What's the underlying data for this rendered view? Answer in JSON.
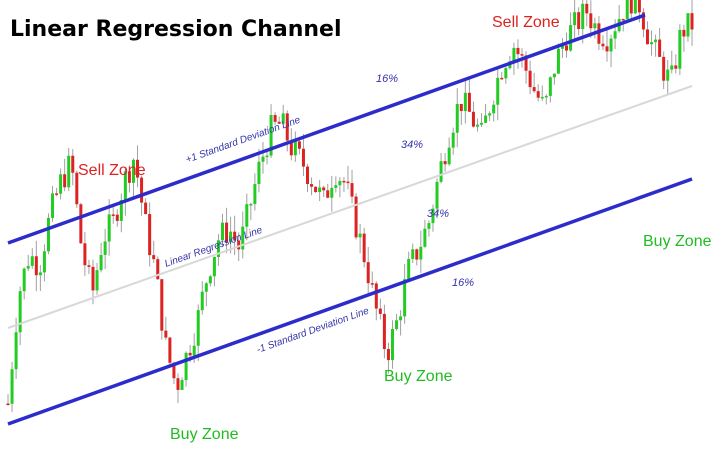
{
  "chart_data": {
    "type": "line",
    "title": "Linear Regression Channel",
    "subtype": "candlestick",
    "colors": {
      "channel": "#2c2ccc",
      "regression": "#d8d8d8",
      "up_candle": "#22cc22",
      "down_candle": "#dd2222",
      "wick": "#a0a0a0",
      "sell_zone": "#dd2222",
      "buy_zone": "#22bb22",
      "line_label": "#3333aa"
    },
    "grid": false,
    "legend": "none",
    "lines": {
      "upper": {
        "label": "+1 Standard Deviation Line"
      },
      "regression": {
        "label": "Linear Regression Line"
      },
      "lower": {
        "label": "-1 Standard Deviation Line"
      }
    },
    "annotations": {
      "sell_zones": [
        "Sell Zone",
        "Sell Zone"
      ],
      "buy_zones": [
        "Buy Zone",
        "Buy Zone",
        "Buy Zone"
      ],
      "percent_top": "16%",
      "percent_upper_mid": "34%",
      "percent_lower_mid": "34%",
      "percent_bottom": "16%"
    },
    "price_path": [
      [
        0,
        0.05
      ],
      [
        1,
        0.38
      ],
      [
        2,
        0.5
      ],
      [
        3,
        0.47
      ],
      [
        4,
        0.62
      ],
      [
        5,
        0.72
      ],
      [
        6,
        0.78
      ],
      [
        7,
        0.52
      ],
      [
        8,
        0.38
      ],
      [
        9,
        0.55
      ],
      [
        10,
        0.6
      ],
      [
        11,
        0.72
      ],
      [
        12,
        0.8
      ],
      [
        13,
        0.6
      ],
      [
        14,
        0.45
      ],
      [
        15,
        0.22
      ],
      [
        16,
        0.1
      ],
      [
        17,
        0.2
      ],
      [
        18,
        0.3
      ],
      [
        19,
        0.45
      ],
      [
        20,
        0.55
      ],
      [
        21,
        0.58
      ],
      [
        22,
        0.52
      ],
      [
        23,
        0.65
      ],
      [
        24,
        0.78
      ],
      [
        25,
        0.88
      ],
      [
        26,
        0.9
      ],
      [
        27,
        0.82
      ],
      [
        28,
        0.78
      ],
      [
        29,
        0.72
      ],
      [
        30,
        0.66
      ],
      [
        31,
        0.76
      ],
      [
        32,
        0.72
      ],
      [
        33,
        0.6
      ],
      [
        34,
        0.48
      ],
      [
        35,
        0.33
      ],
      [
        36,
        0.2
      ],
      [
        37,
        0.3
      ],
      [
        38,
        0.45
      ],
      [
        39,
        0.52
      ],
      [
        40,
        0.6
      ],
      [
        41,
        0.75
      ],
      [
        42,
        0.88
      ],
      [
        43,
        0.97
      ],
      [
        44,
        0.92
      ],
      [
        45,
        0.86
      ],
      [
        46,
        0.98
      ],
      [
        47,
        1.08
      ],
      [
        48,
        1.14
      ],
      [
        49,
        1.08
      ],
      [
        50,
        1.0
      ],
      [
        51,
        0.94
      ],
      [
        52,
        1.08
      ],
      [
        53,
        1.16
      ],
      [
        54,
        1.2
      ],
      [
        55,
        1.24
      ],
      [
        56,
        1.18
      ],
      [
        57,
        1.16
      ],
      [
        58,
        1.22
      ],
      [
        59,
        1.28
      ],
      [
        60,
        1.26
      ],
      [
        61,
        1.15
      ],
      [
        62,
        1.08
      ],
      [
        63,
        1.02
      ],
      [
        64,
        1.18
      ],
      [
        65,
        1.2
      ]
    ]
  }
}
